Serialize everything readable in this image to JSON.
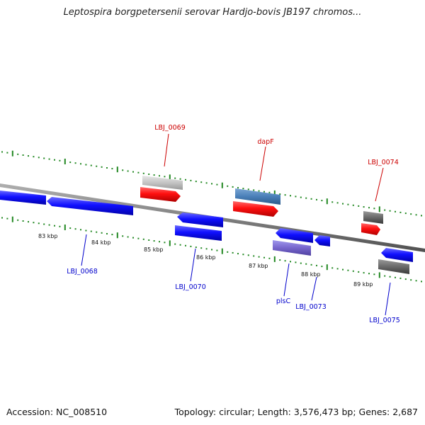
{
  "header": {
    "title": "Leptospira borgpetersenii serovar Hardjo-bovis JB197 chromos..."
  },
  "footer": {
    "accession": "Accession: NC_008510",
    "summary": "Topology: circular; Length: 3,576,473 bp; Genes: 2,687"
  },
  "ticks": [
    {
      "label": "83 kbp"
    },
    {
      "label": "84 kbp"
    },
    {
      "label": "85 kbp"
    },
    {
      "label": "86 kbp"
    },
    {
      "label": "87 kbp"
    },
    {
      "label": "88 kbp"
    },
    {
      "label": "89 kbp"
    }
  ],
  "gene_labels": [
    {
      "text": "LBJ_0069",
      "color": "#cc0000"
    },
    {
      "text": "dapF",
      "color": "#cc0000"
    },
    {
      "text": "LBJ_0074",
      "color": "#cc0000"
    },
    {
      "text": "LBJ_0068",
      "color": "#0000cc"
    },
    {
      "text": "LBJ_0070",
      "color": "#0000cc"
    },
    {
      "text": "plsC",
      "color": "#0000cc"
    },
    {
      "text": "LBJ_0073",
      "color": "#0000cc"
    },
    {
      "text": "LBJ_0075",
      "color": "#0000cc"
    }
  ],
  "colors": {
    "forward_gene": "#ee1111",
    "reverse_gene": "#1111ee",
    "backbone": "#888888",
    "tick_mark": "#228822",
    "rna_gray": "#bbbbbb",
    "steelblue": "#4477aa",
    "slateblue": "#7766cc",
    "darkgray": "#555555"
  }
}
